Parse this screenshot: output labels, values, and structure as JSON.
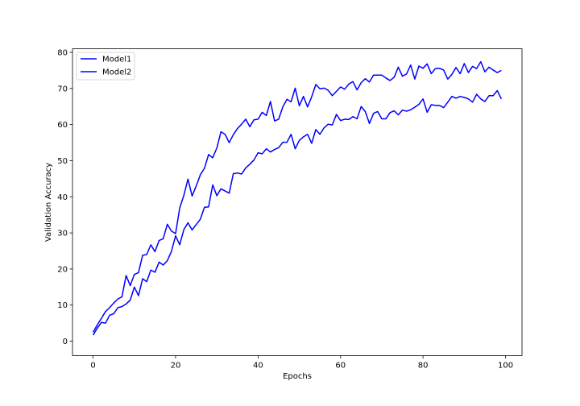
{
  "chart_data": {
    "type": "line",
    "xlabel": "Epochs",
    "ylabel": "Validation Accuracy",
    "xlim": [
      -5,
      104
    ],
    "ylim": [
      -4,
      81
    ],
    "xticks": [
      0,
      20,
      40,
      60,
      80,
      100
    ],
    "yticks": [
      0,
      10,
      20,
      30,
      40,
      50,
      60,
      70,
      80
    ],
    "legend_position": "top-left",
    "grid": false,
    "line_color": "#0000ff",
    "series": [
      {
        "name": "Model1",
        "x": [
          0,
          1,
          2,
          3,
          4,
          5,
          6,
          7,
          8,
          9,
          10,
          11,
          12,
          13,
          14,
          15,
          16,
          17,
          18,
          19,
          20,
          21,
          22,
          23,
          24,
          25,
          26,
          27,
          28,
          29,
          30,
          31,
          32,
          33,
          34,
          35,
          36,
          37,
          38,
          39,
          40,
          41,
          42,
          43,
          44,
          45,
          46,
          47,
          48,
          49,
          50,
          51,
          52,
          53,
          54,
          55,
          56,
          57,
          58,
          59,
          60,
          61,
          62,
          63,
          64,
          65,
          66,
          67,
          68,
          69,
          70,
          71,
          72,
          73,
          74,
          75,
          76,
          77,
          78,
          79,
          80,
          81,
          82,
          83,
          84,
          85,
          86,
          87,
          88,
          89,
          90,
          91,
          92,
          93,
          94,
          95,
          96,
          97,
          98,
          99
        ],
        "y": [
          2.5,
          4.5,
          6.3,
          8.2,
          9.3,
          10.6,
          11.7,
          12.3,
          18.2,
          15.4,
          18.5,
          19.0,
          23.8,
          24.0,
          26.7,
          24.8,
          27.9,
          28.4,
          32.4,
          30.5,
          29.8,
          36.9,
          40.4,
          44.9,
          40.2,
          43.0,
          46.1,
          47.9,
          51.7,
          50.8,
          53.5,
          58.0,
          57.3,
          55.0,
          57.2,
          58.9,
          60.1,
          61.5,
          59.4,
          61.3,
          61.5,
          63.4,
          62.5,
          66.4,
          61.0,
          61.5,
          64.9,
          67.0,
          66.3,
          70.1,
          65.2,
          67.8,
          64.9,
          67.7,
          71.1,
          69.9,
          70.1,
          69.5,
          68.0,
          69.2,
          70.4,
          69.8,
          71.2,
          71.9,
          69.6,
          71.6,
          72.7,
          71.8,
          73.7,
          73.7,
          73.7,
          72.9,
          72.2,
          73.1,
          75.9,
          73.4,
          74.0,
          76.5,
          72.6,
          76.2,
          75.6,
          76.8,
          74.1,
          75.5,
          75.6,
          75.1,
          72.6,
          73.9,
          75.8,
          74.1,
          76.9,
          74.4,
          76.1,
          75.5,
          77.4,
          74.6,
          75.9,
          75.1,
          74.4,
          75.0
        ]
      },
      {
        "name": "Model2",
        "x": [
          0,
          1,
          2,
          3,
          4,
          5,
          6,
          7,
          8,
          9,
          10,
          11,
          12,
          13,
          14,
          15,
          16,
          17,
          18,
          19,
          20,
          21,
          22,
          23,
          24,
          25,
          26,
          27,
          28,
          29,
          30,
          31,
          32,
          33,
          34,
          35,
          36,
          37,
          38,
          39,
          40,
          41,
          42,
          43,
          44,
          45,
          46,
          47,
          48,
          49,
          50,
          51,
          52,
          53,
          54,
          55,
          56,
          57,
          58,
          59,
          60,
          61,
          62,
          63,
          64,
          65,
          66,
          67,
          68,
          69,
          70,
          71,
          72,
          73,
          74,
          75,
          76,
          77,
          78,
          79,
          80,
          81,
          82,
          83,
          84,
          85,
          86,
          87,
          88,
          89,
          90,
          91,
          92,
          93,
          94,
          95,
          96,
          97,
          98,
          99
        ],
        "y": [
          1.7,
          3.6,
          5.2,
          5.0,
          7.2,
          7.6,
          9.3,
          9.6,
          10.3,
          11.4,
          15.0,
          12.6,
          17.3,
          16.5,
          19.7,
          19.1,
          21.9,
          21.1,
          22.3,
          24.9,
          29.2,
          26.7,
          30.9,
          32.8,
          30.8,
          32.3,
          33.8,
          37.1,
          37.2,
          43.3,
          40.3,
          42.2,
          41.6,
          41.0,
          46.4,
          46.6,
          46.3,
          48.0,
          49.0,
          50.2,
          52.2,
          51.9,
          53.3,
          52.4,
          53.1,
          53.6,
          55.1,
          55.1,
          57.3,
          53.3,
          55.6,
          56.6,
          57.3,
          54.8,
          58.6,
          57.3,
          59.1,
          60.1,
          59.9,
          62.8,
          61.1,
          61.5,
          61.4,
          62.2,
          61.6,
          65.0,
          63.6,
          60.3,
          63.1,
          63.6,
          61.6,
          61.6,
          63.3,
          63.8,
          62.7,
          64.0,
          63.7,
          64.1,
          64.8,
          65.6,
          67.1,
          63.4,
          65.5,
          65.3,
          65.3,
          64.7,
          66.2,
          67.8,
          67.3,
          67.8,
          67.5,
          67.1,
          66.2,
          68.4,
          67.1,
          66.4,
          68.0,
          68.0,
          69.4,
          67.1
        ]
      }
    ]
  }
}
